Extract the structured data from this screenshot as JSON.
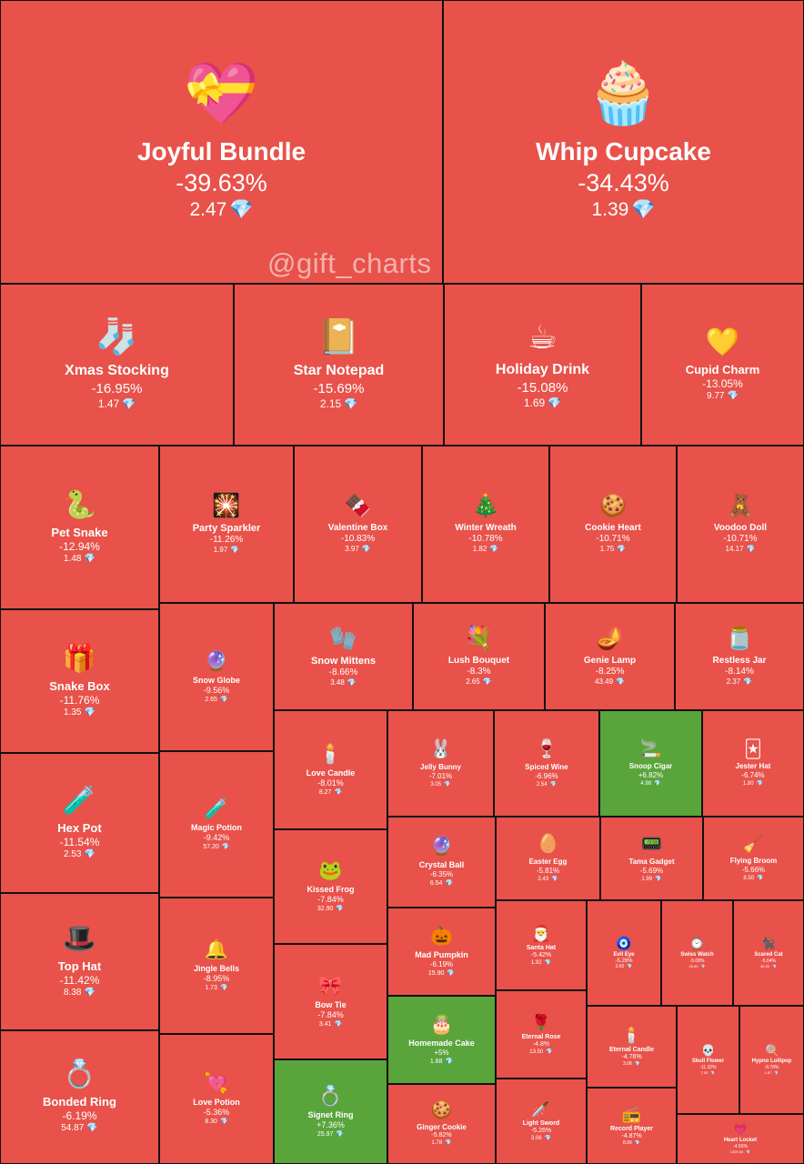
{
  "watermark": "@gift_charts",
  "colors": {
    "down": "#e8524a",
    "up": "#5aa43c",
    "border": "#111111"
  },
  "chart_data": {
    "type": "treemap",
    "title": "",
    "unit_icon": "💎",
    "items": [
      {
        "name": "Joyful Bundle",
        "change": "-39.63%",
        "price": "2.47",
        "icon": "💝"
      },
      {
        "name": "Whip Cupcake",
        "change": "-34.43%",
        "price": "1.39",
        "icon": "🧁"
      },
      {
        "name": "Xmas Stocking",
        "change": "-16.95%",
        "price": "1.47",
        "icon": "🧦"
      },
      {
        "name": "Star Notepad",
        "change": "-15.69%",
        "price": "2.15",
        "icon": "📔"
      },
      {
        "name": "Holiday Drink",
        "change": "-15.08%",
        "price": "1.69",
        "icon": "☕"
      },
      {
        "name": "Cupid Charm",
        "change": "-13.05%",
        "price": "9.77",
        "icon": "💛"
      },
      {
        "name": "Pet Snake",
        "change": "-12.94%",
        "price": "1.48",
        "icon": "🐍"
      },
      {
        "name": "Party Sparkler",
        "change": "-11.26%",
        "price": "1.97",
        "icon": "🎇"
      },
      {
        "name": "Valentine Box",
        "change": "-10.83%",
        "price": "3.97",
        "icon": "🍫"
      },
      {
        "name": "Winter Wreath",
        "change": "-10.78%",
        "price": "1.82",
        "icon": "🎄"
      },
      {
        "name": "Cookie Heart",
        "change": "-10.71%",
        "price": "1.75",
        "icon": "🍪"
      },
      {
        "name": "Voodoo Doll",
        "change": "-10.71%",
        "price": "14.17",
        "icon": "🧸"
      },
      {
        "name": "Snake Box",
        "change": "-11.76%",
        "price": "1.35",
        "icon": "🎁"
      },
      {
        "name": "Snow Globe",
        "change": "-9.56%",
        "price": "2.65",
        "icon": "🔮"
      },
      {
        "name": "Snow Mittens",
        "change": "-8.66%",
        "price": "3.48",
        "icon": "🧤"
      },
      {
        "name": "Lush Bouquet",
        "change": "-8.3%",
        "price": "2.65",
        "icon": "💐"
      },
      {
        "name": "Genie Lamp",
        "change": "-8.25%",
        "price": "43.49",
        "icon": "🪔"
      },
      {
        "name": "Restless Jar",
        "change": "-8.14%",
        "price": "2.37",
        "icon": "🫙"
      },
      {
        "name": "Love Candle",
        "change": "-8.01%",
        "price": "8.27",
        "icon": "🕯️"
      },
      {
        "name": "Jelly Bunny",
        "change": "-7.01%",
        "price": "3.05",
        "icon": "🐰"
      },
      {
        "name": "Spiced Wine",
        "change": "-6.96%",
        "price": "2.54",
        "icon": "🍷"
      },
      {
        "name": "Snoop Cigar",
        "change": "+6.82%",
        "price": "4.98",
        "icon": "🚬",
        "up": true
      },
      {
        "name": "Jester Hat",
        "change": "-6.74%",
        "price": "1.80",
        "icon": "🃏"
      },
      {
        "name": "Hex Pot",
        "change": "-11.54%",
        "price": "2.53",
        "icon": "🧪"
      },
      {
        "name": "Magic Potion",
        "change": "-9.42%",
        "price": "57.20",
        "icon": "🧪"
      },
      {
        "name": "Kissed Frog",
        "change": "-7.84%",
        "price": "32.90",
        "icon": "🐸"
      },
      {
        "name": "Crystal Ball",
        "change": "-6.35%",
        "price": "6.54",
        "icon": "🔮"
      },
      {
        "name": "Easter Egg",
        "change": "-5.81%",
        "price": "2.43",
        "icon": "🥚"
      },
      {
        "name": "Tama Gadget",
        "change": "-5.69%",
        "price": "1.99",
        "icon": "📟"
      },
      {
        "name": "Flying Broom",
        "change": "-5.66%",
        "price": "8.50",
        "icon": "🧹"
      },
      {
        "name": "Top Hat",
        "change": "-11.42%",
        "price": "8.38",
        "icon": "🎩"
      },
      {
        "name": "Jingle Bells",
        "change": "-8.95%",
        "price": "1.73",
        "icon": "🔔"
      },
      {
        "name": "Bow Tie",
        "change": "-7.84%",
        "price": "3.41",
        "icon": "🎀"
      },
      {
        "name": "Mad Pumpkin",
        "change": "-6.19%",
        "price": "15.90",
        "icon": "🎃"
      },
      {
        "name": "Santa Hat",
        "change": "-5.42%",
        "price": "1.92",
        "icon": "🎅"
      },
      {
        "name": "Evil Eye",
        "change": "-5.26%",
        "price": "3.60",
        "icon": "🧿"
      },
      {
        "name": "Swiss Watch",
        "change": "-5.08%",
        "price": "29.90",
        "icon": "⌚"
      },
      {
        "name": "Scared Cat",
        "change": "-5.04%",
        "price": "40.30",
        "icon": "🐈‍⬛"
      },
      {
        "name": "Bonded Ring",
        "change": "-6.19%",
        "price": "54.87",
        "icon": "💍"
      },
      {
        "name": "Love Potion",
        "change": "-5.36%",
        "price": "8.30",
        "icon": "💘"
      },
      {
        "name": "Homemade Cake",
        "change": "+5%",
        "price": "1.68",
        "icon": "🎂",
        "up": true
      },
      {
        "name": "Eternal Rose",
        "change": "-4.8%",
        "price": "13.50",
        "icon": "🌹"
      },
      {
        "name": "Eternal Candle",
        "change": "-4.76%",
        "price": "3.08",
        "icon": "🕯️"
      },
      {
        "name": "Skull Flower",
        "change": "-11.32%",
        "price": "7.05",
        "icon": "💀"
      },
      {
        "name": "Hypno Lollipop",
        "change": "-8.78%",
        "price": "1.87",
        "icon": "🍭"
      },
      {
        "name": "Signet Ring",
        "change": "+7.36%",
        "price": "25.97",
        "icon": "💍",
        "up": true
      },
      {
        "name": "Ginger Cookie",
        "change": "-5.82%",
        "price": "1.78",
        "icon": "🍪"
      },
      {
        "name": "Light Sword",
        "change": "-5.26%",
        "price": "3.06",
        "icon": "🗡️"
      },
      {
        "name": "Record Player",
        "change": "-4.87%",
        "price": "8.99",
        "icon": "📻"
      },
      {
        "name": "Heart Locket",
        "change": "-4.55%",
        "price": "1329.94",
        "icon": "💗"
      }
    ]
  }
}
